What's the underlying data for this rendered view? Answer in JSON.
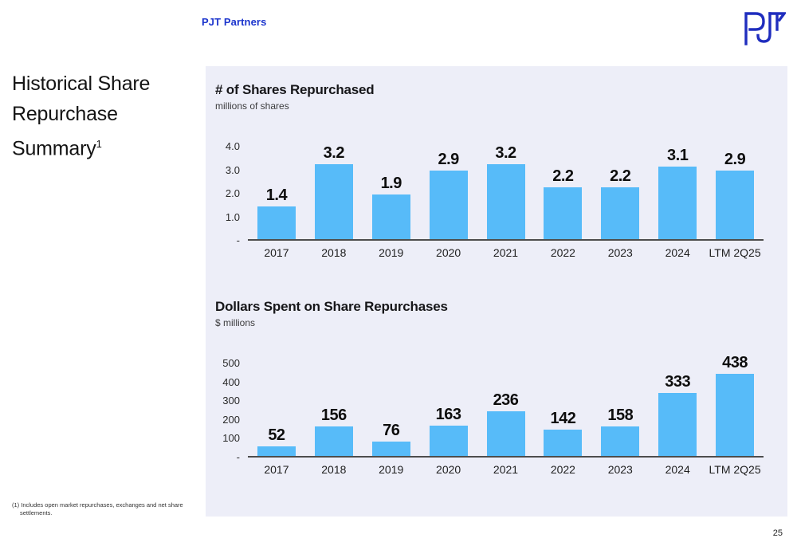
{
  "header": {
    "brand": "PJT Partners"
  },
  "logo": {
    "name": "pjt-logo",
    "letters": "PJT"
  },
  "slide": {
    "title_lines": [
      "Historical Share",
      "Repurchase",
      "Summary"
    ],
    "title_superscript": "1",
    "footnote": "(1) Includes open market repurchases, exchanges and net share settlements.",
    "page_number": "25"
  },
  "colors": {
    "bar": "#57BBF9",
    "panel_background": "#EDEEF8",
    "brand_blue": "#1c35cd",
    "logo_blue": "#1F2DBE",
    "axis_line": "#4d4d4d"
  },
  "chart_data": [
    {
      "type": "bar",
      "title": "# of Shares Repurchased",
      "subtitle": "millions of shares",
      "categories": [
        "2017",
        "2018",
        "2019",
        "2020",
        "2021",
        "2022",
        "2023",
        "2024",
        "LTM 2Q25"
      ],
      "values": [
        1.4,
        3.2,
        1.9,
        2.9,
        3.2,
        2.2,
        2.2,
        3.1,
        2.9
      ],
      "value_labels": [
        "1.4",
        "3.2",
        "1.9",
        "2.9",
        "3.2",
        "2.2",
        "2.2",
        "3.1",
        "2.9"
      ],
      "yticks": [
        {
          "label": "4.0",
          "value": 4.0
        },
        {
          "label": "3.0",
          "value": 3.0
        },
        {
          "label": "2.0",
          "value": 2.0
        },
        {
          "label": "1.0",
          "value": 1.0
        },
        {
          "label": "-",
          "value": 0
        }
      ],
      "ylim": [
        0,
        4.0
      ],
      "grid": false,
      "legend": null
    },
    {
      "type": "bar",
      "title": "Dollars Spent on Share Repurchases",
      "subtitle": "$ millions",
      "categories": [
        "2017",
        "2018",
        "2019",
        "2020",
        "2021",
        "2022",
        "2023",
        "2024",
        "LTM 2Q25"
      ],
      "values": [
        52,
        156,
        76,
        163,
        236,
        142,
        158,
        333,
        438
      ],
      "value_labels": [
        "52",
        "156",
        "76",
        "163",
        "236",
        "142",
        "158",
        "333",
        "438"
      ],
      "yticks": [
        {
          "label": "500",
          "value": 500
        },
        {
          "label": "400",
          "value": 400
        },
        {
          "label": "300",
          "value": 300
        },
        {
          "label": "200",
          "value": 200
        },
        {
          "label": "100",
          "value": 100
        },
        {
          "label": "-",
          "value": 0
        }
      ],
      "ylim": [
        0,
        500
      ],
      "grid": false,
      "legend": null
    }
  ]
}
